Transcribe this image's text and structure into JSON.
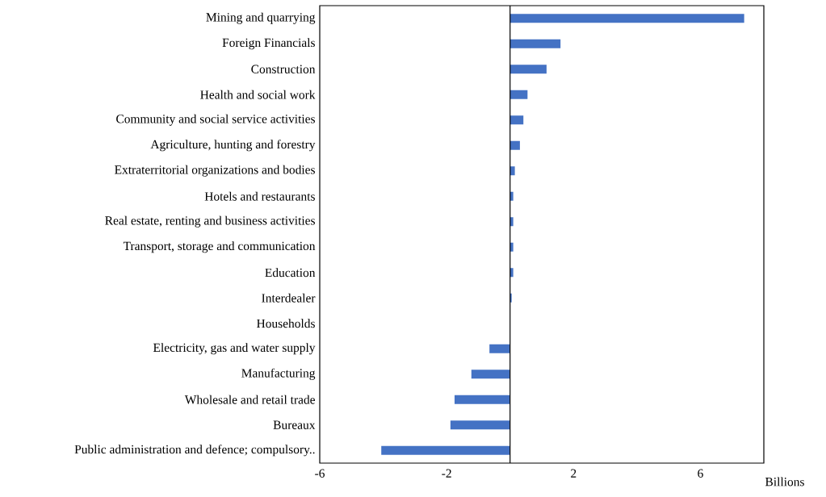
{
  "chart_data": {
    "type": "bar",
    "orientation": "horizontal",
    "xlabel": "Billions",
    "categories": [
      "Mining and quarrying",
      "Foreign Financials",
      "Construction",
      "Health and social work",
      "Community and social service activities",
      "Agriculture, hunting and forestry",
      "Extraterritorial organizations and bodies",
      "Hotels and restaurants",
      "Real estate, renting and business activities",
      "Transport, storage and communication",
      "Education",
      "Interdealer",
      "Households",
      "Electricity, gas and water supply",
      "Manufacturing",
      "Wholesale and retail trade",
      "Bureaux",
      "Public administration and defence; compulsory.."
    ],
    "values": [
      7.38,
      1.59,
      1.15,
      0.55,
      0.42,
      0.31,
      0.15,
      0.1,
      0.1,
      0.1,
      0.1,
      0.05,
      0,
      -0.65,
      -1.22,
      -1.75,
      -1.88,
      -4.06
    ],
    "color": "#4472c4",
    "xlim": [
      -6,
      8
    ],
    "xticks": [
      -6,
      -2,
      2,
      6
    ],
    "grid": false
  }
}
